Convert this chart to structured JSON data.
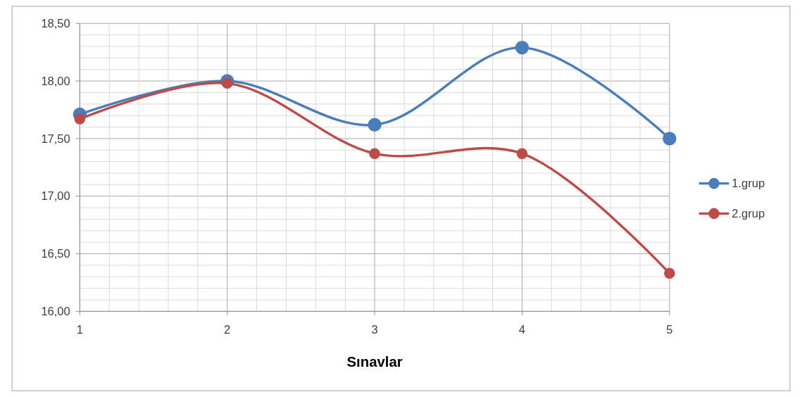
{
  "chart_data": {
    "type": "line",
    "xlabel": "Sınavlar",
    "x": [
      1,
      2,
      3,
      4,
      5
    ],
    "series": [
      {
        "name": "1.grup",
        "color": "#4a7ebb",
        "values": [
          17.71,
          18.0,
          17.62,
          18.29,
          17.5
        ]
      },
      {
        "name": "2.grup",
        "color": "#be4b48",
        "values": [
          17.67,
          17.98,
          17.37,
          17.37,
          16.33
        ]
      }
    ],
    "xlim": [
      1,
      5
    ],
    "xticks": [
      1,
      {
        "value": 1.2,
        "label": null
      },
      {
        "value": 1.4,
        "label": null
      },
      {
        "value": 1.6,
        "label": null
      },
      {
        "value": 1.8,
        "label": null
      },
      2,
      {
        "value": 2.2,
        "label": null
      },
      {
        "value": 2.4,
        "label": null
      },
      {
        "value": 2.6,
        "label": null
      },
      {
        "value": 2.8,
        "label": null
      },
      3,
      {
        "value": 3.2,
        "label": null
      },
      {
        "value": 3.4,
        "label": null
      },
      {
        "value": 3.6,
        "label": null
      },
      {
        "value": 3.8,
        "label": null
      },
      4,
      {
        "value": 4.2,
        "label": null
      },
      {
        "value": 4.4,
        "label": null
      },
      {
        "value": 4.6,
        "label": null
      },
      {
        "value": 4.8,
        "label": null
      },
      5
    ],
    "ylim": [
      16,
      18.5
    ],
    "yticks": [
      {
        "value": 16,
        "label": "16,00"
      },
      {
        "value": 16.1,
        "label": null
      },
      {
        "value": 16.2,
        "label": null
      },
      {
        "value": 16.3,
        "label": null
      },
      {
        "value": 16.4,
        "label": null
      },
      {
        "value": 16.5,
        "label": "16,50"
      },
      {
        "value": 16.6,
        "label": null
      },
      {
        "value": 16.7,
        "label": null
      },
      {
        "value": 16.8,
        "label": null
      },
      {
        "value": 16.9,
        "label": null
      },
      {
        "value": 17,
        "label": "17,00"
      },
      {
        "value": 17.1,
        "label": null
      },
      {
        "value": 17.2,
        "label": null
      },
      {
        "value": 17.3,
        "label": null
      },
      {
        "value": 17.4,
        "label": null
      },
      {
        "value": 17.5,
        "label": "17,50"
      },
      {
        "value": 17.6,
        "label": null
      },
      {
        "value": 17.7,
        "label": null
      },
      {
        "value": 17.8,
        "label": null
      },
      {
        "value": 17.9,
        "label": null
      },
      {
        "value": 18,
        "label": "18,00"
      },
      {
        "value": 18.1,
        "label": null
      },
      {
        "value": 18.2,
        "label": null
      },
      {
        "value": 18.3,
        "label": null
      },
      {
        "value": 18.4,
        "label": null
      },
      {
        "value": 18.5,
        "label": "18,50"
      }
    ],
    "grid": true,
    "legend": "right",
    "marker": "circle",
    "line_style": "solid"
  }
}
